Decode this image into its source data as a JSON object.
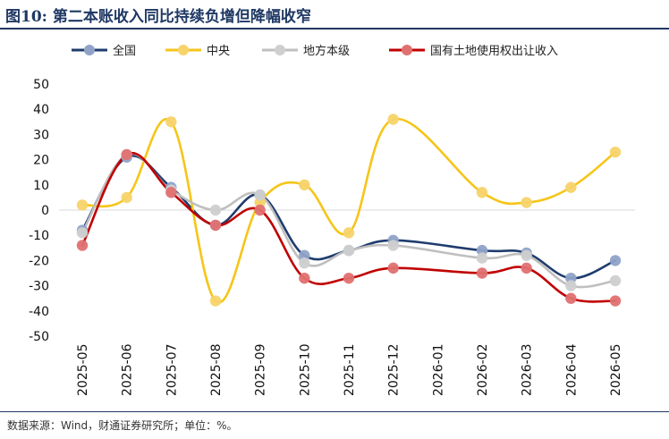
{
  "title": "图10: 第二本账收入同比持续负增但降幅收窄",
  "source": "数据来源：Wind，财通证券研究所；单位：%。",
  "colors": {
    "title": "#1f3864",
    "rule": "#1f3864"
  },
  "chart_data": {
    "type": "line",
    "ylim": [
      -50,
      50
    ],
    "yticks": [
      50,
      40,
      30,
      20,
      10,
      0,
      -10,
      -20,
      -30,
      -40,
      -50
    ],
    "categories": [
      "2025-05",
      "2025-06",
      "2025-07",
      "2025-08",
      "2025-09",
      "2025-10",
      "2025-11",
      "2025-12",
      "2026-01",
      "2026-02",
      "2026-03",
      "2026-04",
      "2026-05"
    ],
    "grid": false,
    "legend_position": "top",
    "smooth": true,
    "series": [
      {
        "name": "全国",
        "color": "#1f3c6e",
        "marker": "#8fa3c8",
        "values": [
          -8,
          21,
          9,
          -6,
          6,
          -18,
          -16,
          -12,
          null,
          -16,
          -17,
          -27,
          -20
        ]
      },
      {
        "name": "中央",
        "color": "#f5c518",
        "marker": "#f7d36a",
        "values": [
          2,
          5,
          35,
          -36,
          3,
          10,
          -9,
          36,
          null,
          7,
          3,
          9,
          23
        ]
      },
      {
        "name": "地方本级",
        "color": "#bfbfbf",
        "marker": "#cfcfcf",
        "values": [
          -9,
          22,
          8,
          0,
          6,
          -21,
          -16,
          -14,
          null,
          -19,
          -18,
          -30,
          -28
        ]
      },
      {
        "name": "国有土地使用权出让收入",
        "color": "#c00000",
        "marker": "#e07070",
        "values": [
          -14,
          22,
          7,
          -6,
          0,
          -27,
          -27,
          -23,
          null,
          -25,
          -23,
          -35,
          -36
        ]
      }
    ]
  }
}
